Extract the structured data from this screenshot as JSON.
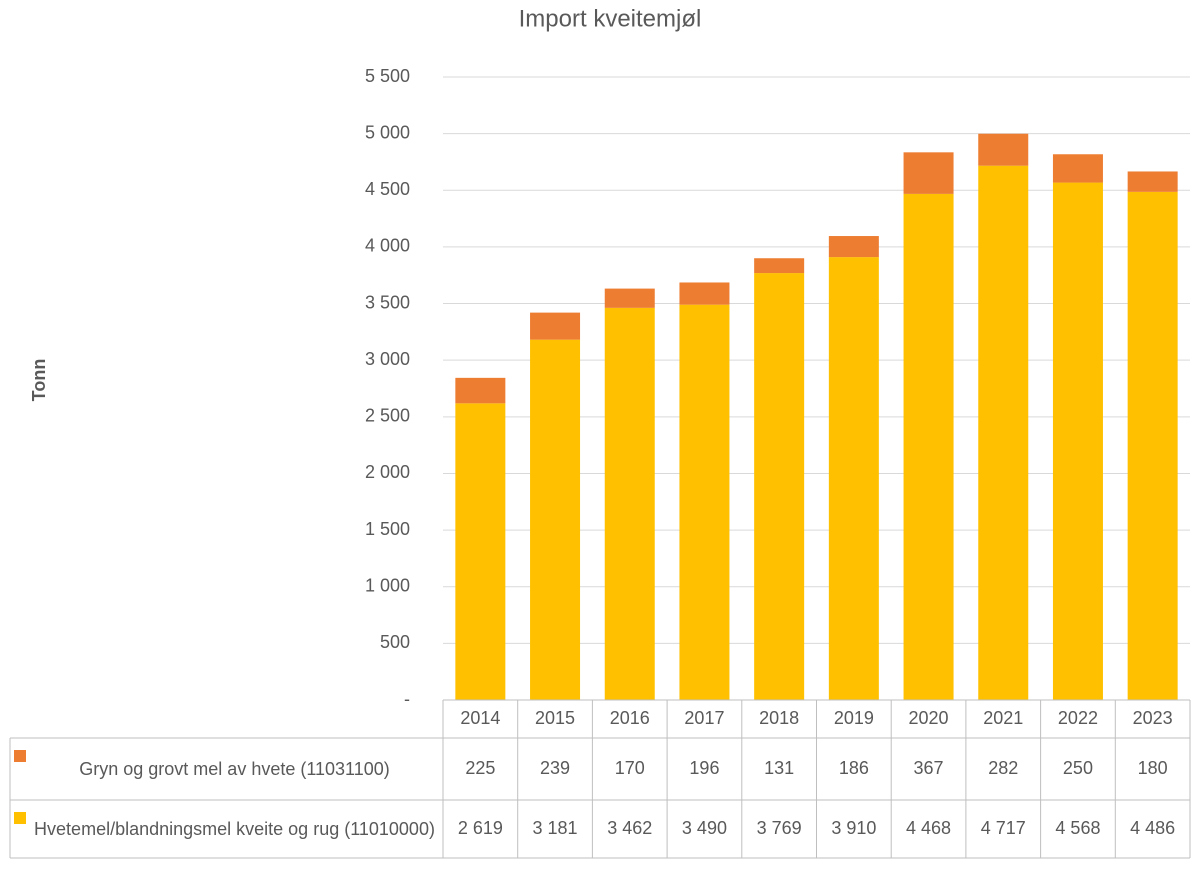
{
  "chart_data": {
    "type": "stacked_bar",
    "title": "Import kveitemjøl",
    "y_label": "Tonn",
    "categories": [
      "2014",
      "2015",
      "2016",
      "2017",
      "2018",
      "2019",
      "2020",
      "2021",
      "2022",
      "2023"
    ],
    "series": [
      {
        "name": "Hvetemel/blandningsmel kveite og rug (11010000)",
        "color": "#FFC000",
        "values": [
          2619,
          3181,
          3462,
          3490,
          3769,
          3910,
          4468,
          4717,
          4568,
          4486
        ],
        "value_labels": [
          "2 619",
          "3 181",
          "3 462",
          "3 490",
          "3 769",
          "3 910",
          "4 468",
          "4 717",
          "4 568",
          "4 486"
        ]
      },
      {
        "name": "Gryn og grovt mel av hvete (11031100)",
        "color": "#ED7D31",
        "values": [
          225,
          239,
          170,
          196,
          131,
          186,
          367,
          282,
          250,
          180
        ],
        "value_labels": [
          "225",
          "239",
          "170",
          "196",
          "131",
          "186",
          "367",
          "282",
          "250",
          "180"
        ]
      }
    ],
    "ylim": [
      0,
      5500
    ],
    "yticks": [
      {
        "value": 0,
        "label": "-"
      },
      500,
      {
        "value": 1000,
        "label": "1 000"
      },
      {
        "value": 1500,
        "label": "1 500"
      },
      {
        "value": 2000,
        "label": "2 000"
      },
      {
        "value": 2500,
        "label": "2 500"
      },
      {
        "value": 3000,
        "label": "3 000"
      },
      {
        "value": 3500,
        "label": "3 500"
      },
      {
        "value": 4000,
        "label": "4 000"
      },
      {
        "value": 4500,
        "label": "4 500"
      },
      {
        "value": 5000,
        "label": "5 000"
      },
      {
        "value": 5500,
        "label": "5 500"
      }
    ],
    "grid": true
  }
}
